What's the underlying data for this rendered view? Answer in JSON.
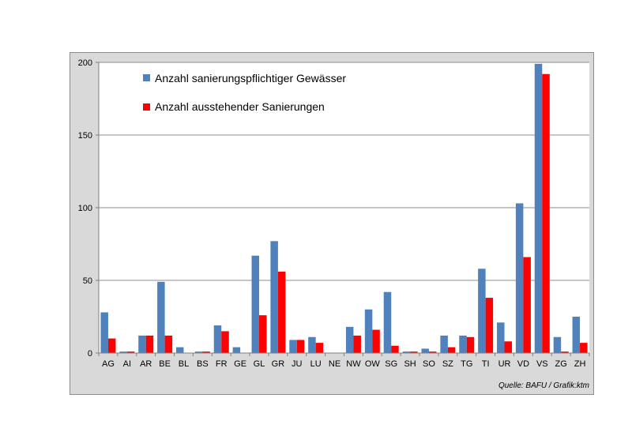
{
  "chart_data": {
    "type": "bar",
    "categories": [
      "AG",
      "AI",
      "AR",
      "BE",
      "BL",
      "BS",
      "FR",
      "GE",
      "GL",
      "GR",
      "JU",
      "LU",
      "NE",
      "NW",
      "OW",
      "SG",
      "SH",
      "SO",
      "SZ",
      "TG",
      "TI",
      "UR",
      "VD",
      "VS",
      "ZG",
      "ZH"
    ],
    "series": [
      {
        "name": "Anzahl sanierungspflichtiger Gewässer",
        "color": "#4f81bd",
        "values": [
          28,
          1,
          12,
          49,
          4,
          1,
          19,
          4,
          67,
          77,
          9,
          11,
          0,
          18,
          30,
          42,
          1,
          3,
          12,
          12,
          58,
          21,
          103,
          199,
          11,
          25
        ]
      },
      {
        "name": "Anzahl ausstehender Sanierungen",
        "color": "#ff0000",
        "values": [
          10,
          1,
          12,
          12,
          0,
          1,
          15,
          0,
          26,
          56,
          9,
          7,
          0,
          12,
          16,
          5,
          1,
          1,
          4,
          11,
          38,
          8,
          66,
          192,
          1,
          7
        ]
      }
    ],
    "y_ticks": [
      "0",
      "50",
      "100",
      "150",
      "200"
    ],
    "ylim": [
      0,
      200
    ],
    "grid": true,
    "legend_position": "top-left inside plot",
    "source": "Quelle: BAFU / Grafik:ktm"
  }
}
